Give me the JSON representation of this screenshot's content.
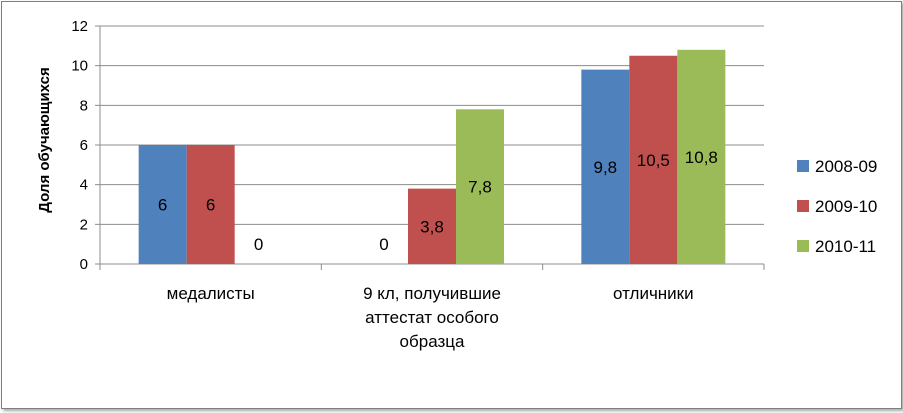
{
  "chart_data": {
    "type": "bar",
    "title": "",
    "ylabel": "Доля обучающихся",
    "xlabel": "",
    "ylim": [
      0,
      12
    ],
    "y_ticks": [
      "0",
      "2",
      "4",
      "6",
      "8",
      "10",
      "12"
    ],
    "grid": true,
    "legend_position": "right",
    "categories": [
      [
        "медалисты"
      ],
      [
        "9 кл, получившие",
        "аттестат особого",
        "образца"
      ],
      [
        "отличники"
      ]
    ],
    "series": [
      {
        "name": "2008-09",
        "color": "#4f81bd",
        "values": [
          6,
          null,
          9.8
        ],
        "labels": [
          "6",
          "",
          "9,8"
        ]
      },
      {
        "name": "2009-10",
        "color": "#c0504d",
        "values": [
          6,
          3.8,
          10.5
        ],
        "labels": [
          "6",
          "3,8",
          "10,5"
        ]
      },
      {
        "name": "2010-11",
        "color": "#9bbb59",
        "values": [
          0,
          7.8,
          10.8
        ],
        "labels": [
          "0",
          "7,8",
          "10,8"
        ]
      }
    ],
    "extra_labels": [
      {
        "category": 1,
        "series": 0,
        "text": "0"
      }
    ]
  }
}
